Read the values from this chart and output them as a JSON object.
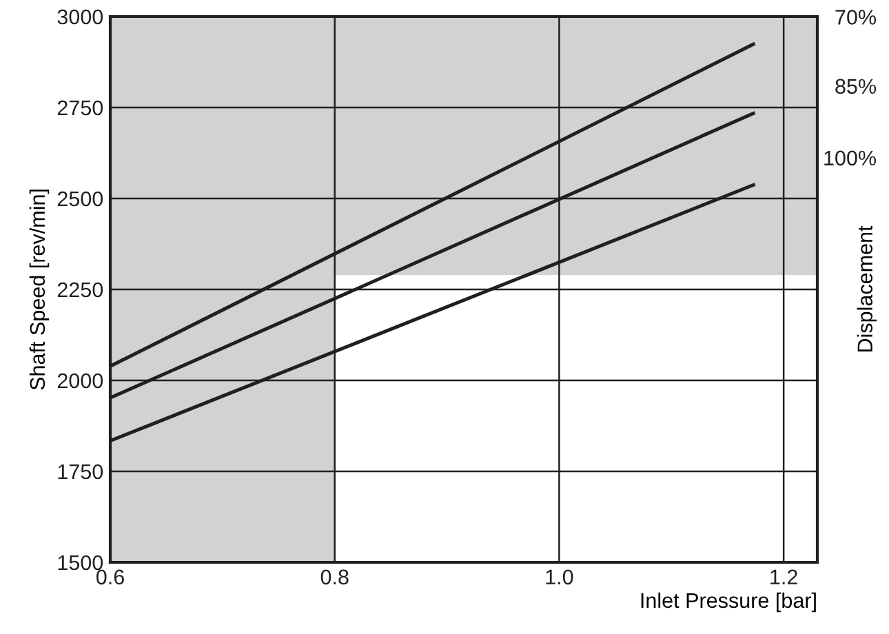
{
  "chart_data": {
    "type": "line",
    "xlabel": "Inlet Pressure [bar]",
    "ylabel": "Shaft Speed [rev/min]",
    "y2label": "Displacement",
    "x": [
      0.6,
      1.173
    ],
    "series": [
      {
        "name": "70%",
        "color": "#231f20",
        "values": [
          2039,
          2924
        ]
      },
      {
        "name": "85%",
        "color": "#231f20",
        "values": [
          1952,
          2734
        ]
      },
      {
        "name": "100%",
        "color": "#231f20",
        "values": [
          1834,
          2537
        ]
      }
    ],
    "xlim": [
      0.6,
      1.23
    ],
    "xticks": [
      0.6,
      0.8,
      {
        "value": 1.0,
        "label": "1.0"
      },
      1.2
    ],
    "ylim": [
      1500,
      3000
    ],
    "yticks": [
      1500,
      1750,
      2000,
      2250,
      2500,
      2750,
      3000
    ],
    "bands": [
      {
        "axis": "x",
        "from": 0.6,
        "to": 0.8,
        "color": "#d1d2d4"
      },
      {
        "axis": "y",
        "from": 2290,
        "to": 3000,
        "color": "#d1d2d4"
      }
    ],
    "grid": true,
    "legend": false,
    "marker": "none",
    "line_style": "solid"
  }
}
